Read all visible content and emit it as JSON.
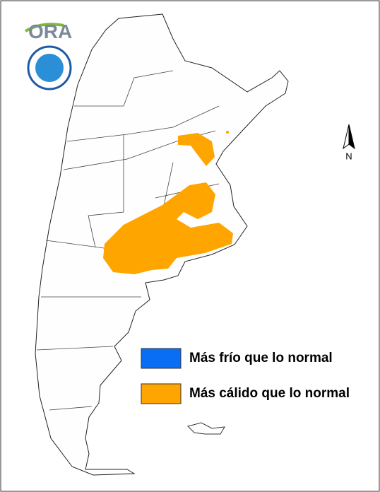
{
  "logo": {
    "text": "ORA"
  },
  "north_arrow": {
    "label": "N"
  },
  "legend": {
    "items": [
      {
        "label": "Más frío que lo normal",
        "color": "#0a6ef5"
      },
      {
        "label": "Más cálido que lo normal",
        "color": "#ffa500"
      }
    ]
  }
}
